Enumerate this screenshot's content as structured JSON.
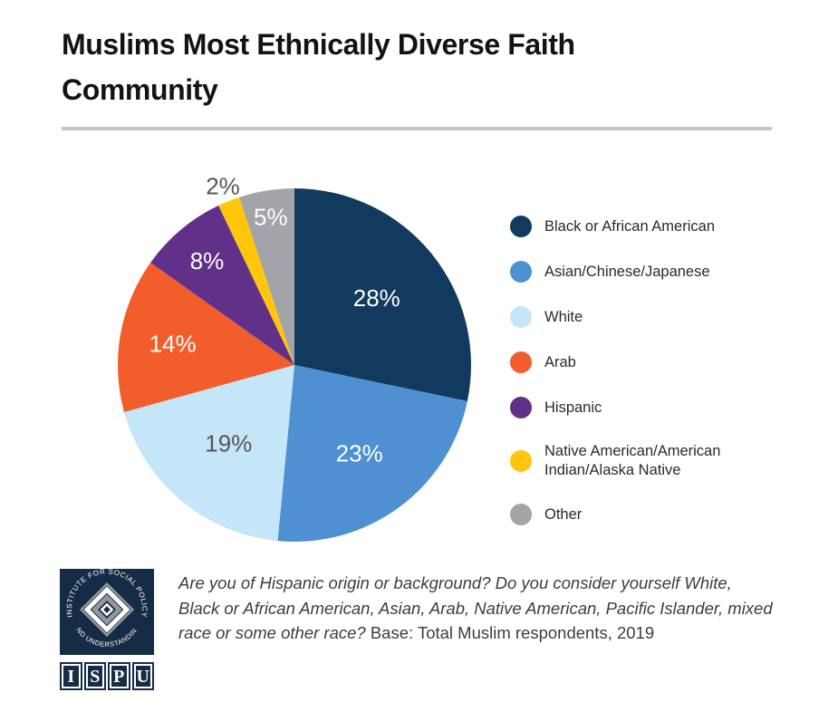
{
  "title": "Muslims Most Ethnically Diverse Faith Community",
  "chart_data": {
    "type": "pie",
    "title": "Muslims Most Ethnically Diverse Faith Community",
    "direction": "clockwise",
    "start_angle_deg": 0,
    "legend_position": "right",
    "label_style": "percent",
    "slices": [
      {
        "label": "Black or African American",
        "value": 28,
        "pct_label": "28%",
        "color": "#12395E",
        "label_color": "#FFFFFF",
        "label_r": 0.6
      },
      {
        "label": "Asian/Chinese/Japanese",
        "value": 23,
        "pct_label": "23%",
        "color": "#4E90D1",
        "label_color": "#FFFFFF",
        "label_r": 0.62
      },
      {
        "label": "White",
        "value": 19,
        "pct_label": "19%",
        "color": "#C5E5F8",
        "label_color": "#54565A",
        "label_r": 0.58
      },
      {
        "label": "Arab",
        "value": 14,
        "pct_label": "14%",
        "color": "#F15E2C",
        "label_color": "#FFFFFF",
        "label_r": 0.7
      },
      {
        "label": "Hispanic",
        "value": 8,
        "pct_label": "8%",
        "color": "#613189",
        "label_color": "#FFFFFF",
        "label_r": 0.77
      },
      {
        "label": "Native American/American Indian/Alaska Native",
        "value": 2,
        "pct_label": "2%",
        "color": "#FFC60B",
        "label_color": "#54565A",
        "label_r": 1.09
      },
      {
        "label": "Other",
        "value": 5,
        "pct_label": "5%",
        "color": "#A2A4A7",
        "label_color": "#FFFFFF",
        "label_r": 0.85
      }
    ]
  },
  "footnote": {
    "question_italic": "Are you of Hispanic origin or background? Do you consider yourself White, Black or African American, Asian, Arab, Native American, Pacific Islander, mixed race or some other race?",
    "base_text": " Base: Total Muslim respondents, 2019"
  },
  "logo": {
    "arc_top_text": "INSTITUTE FOR SOCIAL POLICY",
    "arc_bottom_text": "AND UNDERSTANDING",
    "letters": [
      "I",
      "S",
      "P",
      "U"
    ],
    "navy": "#152C47",
    "gray": "#95979B"
  }
}
